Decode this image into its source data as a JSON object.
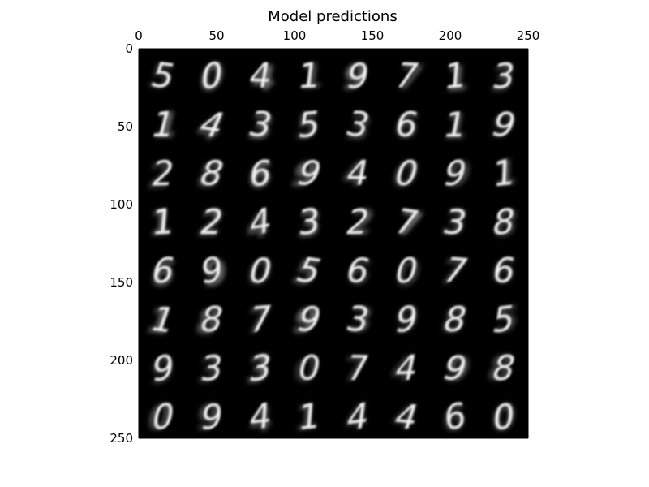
{
  "title": "Model predictions",
  "axes": {
    "x_ticks": [
      "0",
      "50",
      "100",
      "150",
      "200",
      "250"
    ],
    "y_ticks": [
      "0",
      "50",
      "100",
      "150",
      "200",
      "250"
    ],
    "x_range": [
      0,
      250
    ],
    "y_range": [
      0,
      250
    ]
  },
  "grid": {
    "rows": 8,
    "cols": 8,
    "background": "#000000",
    "digits": [
      [
        "5",
        "0",
        "4",
        "1",
        "9",
        "7",
        "1",
        "3"
      ],
      [
        "1",
        "4",
        "3",
        "5",
        "3",
        "6",
        "1",
        "9"
      ],
      [
        "2",
        "8",
        "6",
        "9",
        "4",
        "0",
        "9",
        "1"
      ],
      [
        "1",
        "2",
        "4",
        "3",
        "2",
        "7",
        "3",
        "8"
      ],
      [
        "6",
        "9",
        "0",
        "5",
        "6",
        "0",
        "7",
        "6"
      ],
      [
        "1",
        "8",
        "7",
        "9",
        "3",
        "9",
        "8",
        "5"
      ],
      [
        "9",
        "3",
        "3",
        "0",
        "7",
        "4",
        "9",
        "8"
      ],
      [
        "0",
        "9",
        "4",
        "1",
        "4",
        "4",
        "6",
        "0"
      ]
    ]
  }
}
